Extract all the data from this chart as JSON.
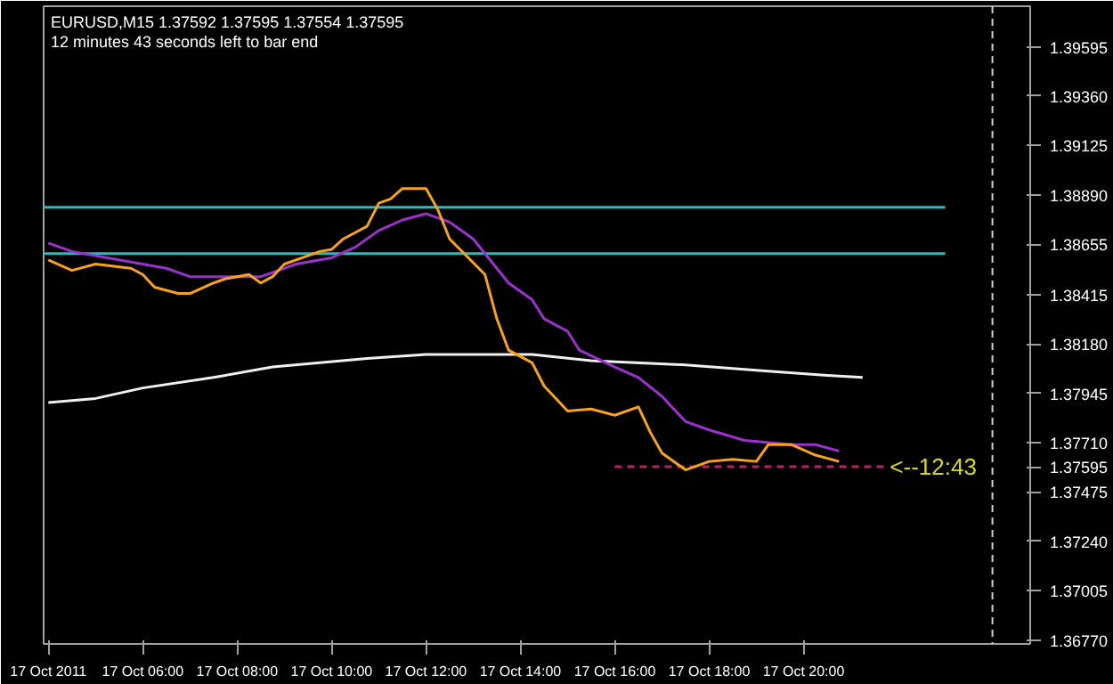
{
  "chart_data": {
    "type": "line",
    "title": "EURUSD,M15  1.37592 1.37595 1.37554 1.37595",
    "subtitle": "12 minutes 43 seconds left to bar end",
    "annotations": [
      {
        "text": "<--12:43",
        "x": "2011-10-17T21:45",
        "y": 1.37595
      }
    ],
    "xlim": [
      "2011-10-17T03:54",
      "2011-10-18T00:48"
    ],
    "ylim": [
      1.36751,
      1.39788
    ],
    "xticks": [
      {
        "value": "2011-10-17T04:00",
        "label": "17 Oct 2011"
      },
      {
        "value": "2011-10-17T06:00",
        "label": "17 Oct 06:00"
      },
      {
        "value": "2011-10-17T08:00",
        "label": "17 Oct 08:00"
      },
      {
        "value": "2011-10-17T10:00",
        "label": "17 Oct 10:00"
      },
      {
        "value": "2011-10-17T12:00",
        "label": "17 Oct 12:00"
      },
      {
        "value": "2011-10-17T14:00",
        "label": "17 Oct 14:00"
      },
      {
        "value": "2011-10-17T16:00",
        "label": "17 Oct 16:00"
      },
      {
        "value": "2011-10-17T18:00",
        "label": "17 Oct 18:00"
      },
      {
        "value": "2011-10-17T20:00",
        "label": "17 Oct 20:00"
      }
    ],
    "yticks": [
      {
        "value": 1.39595,
        "label": "1.39595"
      },
      {
        "value": 1.3936,
        "label": "1.39360"
      },
      {
        "value": 1.39125,
        "label": "1.39125"
      },
      {
        "value": 1.3889,
        "label": "1.38890"
      },
      {
        "value": 1.38655,
        "label": "1.38655"
      },
      {
        "value": 1.38415,
        "label": "1.38415"
      },
      {
        "value": 1.3818,
        "label": "1.38180"
      },
      {
        "value": 1.37945,
        "label": "1.37945"
      },
      {
        "value": 1.3771,
        "label": "1.37710"
      },
      {
        "value": 1.37595,
        "label": "1.37595"
      },
      {
        "value": 1.37475,
        "label": "1.37475"
      },
      {
        "value": 1.3724,
        "label": "1.37240"
      },
      {
        "value": 1.37005,
        "label": "1.37005"
      },
      {
        "value": 1.3677,
        "label": "1.36770"
      }
    ],
    "grid": false,
    "ref_lines": [
      {
        "axis": "x",
        "value": "2011-10-18T00:00",
        "color": "#d0d0d0",
        "line_style": "dashed"
      }
    ],
    "series": [
      {
        "color": "#20c0c0",
        "line_style": "solid",
        "x": [
          "2011-10-17T03:54",
          "2011-10-17T23:00"
        ],
        "values": [
          1.3883,
          1.3883
        ]
      },
      {
        "color": "#20c0c0",
        "line_style": "solid",
        "x": [
          "2011-10-17T03:54",
          "2011-10-17T23:00"
        ],
        "values": [
          1.3861,
          1.3861
        ]
      },
      {
        "color": "#c0206a",
        "line_style": "dashed",
        "x": [
          "2011-10-17T16:00",
          "2011-10-17T21:45"
        ],
        "values": [
          1.37595,
          1.37595
        ]
      },
      {
        "color": "#f0f0f0",
        "line_style": "solid",
        "x": [
          "2011-10-17T04:00",
          "2011-10-17T05:00",
          "2011-10-17T06:00",
          "2011-10-17T07:30",
          "2011-10-17T08:45",
          "2011-10-17T10:45",
          "2011-10-17T12:00",
          "2011-10-17T13:15",
          "2011-10-17T14:15",
          "2011-10-17T15:30",
          "2011-10-17T17:30",
          "2011-10-17T19:15",
          "2011-10-17T20:30",
          "2011-10-17T21:15"
        ],
        "values": [
          1.379,
          1.3792,
          1.3797,
          1.3802,
          1.3807,
          1.3811,
          1.3813,
          1.3813,
          1.3813,
          1.381,
          1.3808,
          1.3805,
          1.3803,
          1.3802
        ]
      },
      {
        "color": "#9932cc",
        "line_style": "solid",
        "x": [
          "2011-10-17T04:00",
          "2011-10-17T04:30",
          "2011-10-17T05:15",
          "2011-10-17T06:30",
          "2011-10-17T07:00",
          "2011-10-17T07:45",
          "2011-10-17T08:30",
          "2011-10-17T09:15",
          "2011-10-17T10:00",
          "2011-10-17T10:30",
          "2011-10-17T11:00",
          "2011-10-17T11:30",
          "2011-10-17T12:00",
          "2011-10-17T12:30",
          "2011-10-17T13:00",
          "2011-10-17T13:15",
          "2011-10-17T13:45",
          "2011-10-17T14:15",
          "2011-10-17T14:30",
          "2011-10-17T15:00",
          "2011-10-17T15:15",
          "2011-10-17T16:00",
          "2011-10-17T16:30",
          "2011-10-17T17:00",
          "2011-10-17T17:30",
          "2011-10-17T18:00",
          "2011-10-17T18:45",
          "2011-10-17T19:45",
          "2011-10-17T20:15",
          "2011-10-17T20:45"
        ],
        "values": [
          1.3866,
          1.3862,
          1.3859,
          1.3854,
          1.385,
          1.385,
          1.385,
          1.3856,
          1.3859,
          1.3864,
          1.3872,
          1.3877,
          1.388,
          1.3876,
          1.3868,
          1.3861,
          1.3847,
          1.3839,
          1.383,
          1.3824,
          1.3815,
          1.3807,
          1.3802,
          1.3793,
          1.3781,
          1.3777,
          1.3772,
          1.377,
          1.377,
          1.3767
        ]
      },
      {
        "color": "#f7a21b",
        "line_style": "solid",
        "x": [
          "2011-10-17T04:00",
          "2011-10-17T04:30",
          "2011-10-17T05:00",
          "2011-10-17T05:45",
          "2011-10-17T06:00",
          "2011-10-17T06:15",
          "2011-10-17T06:45",
          "2011-10-17T07:00",
          "2011-10-17T07:30",
          "2011-10-17T07:45",
          "2011-10-17T08:15",
          "2011-10-17T08:30",
          "2011-10-17T08:45",
          "2011-10-17T09:00",
          "2011-10-17T09:30",
          "2011-10-17T09:45",
          "2011-10-17T10:00",
          "2011-10-17T10:15",
          "2011-10-17T10:45",
          "2011-10-17T11:00",
          "2011-10-17T11:15",
          "2011-10-17T11:30",
          "2011-10-17T12:00",
          "2011-10-17T12:15",
          "2011-10-17T12:30",
          "2011-10-17T13:15",
          "2011-10-17T13:30",
          "2011-10-17T13:45",
          "2011-10-17T14:15",
          "2011-10-17T14:30",
          "2011-10-17T15:00",
          "2011-10-17T15:30",
          "2011-10-17T16:00",
          "2011-10-17T16:30",
          "2011-10-17T16:45",
          "2011-10-17T17:00",
          "2011-10-17T17:30",
          "2011-10-17T18:00",
          "2011-10-17T18:30",
          "2011-10-17T19:00",
          "2011-10-17T19:15",
          "2011-10-17T19:45",
          "2011-10-17T20:15",
          "2011-10-17T20:45"
        ],
        "values": [
          1.3858,
          1.3853,
          1.3856,
          1.3854,
          1.3851,
          1.3845,
          1.3842,
          1.3842,
          1.3847,
          1.3849,
          1.3851,
          1.3847,
          1.385,
          1.3856,
          1.386,
          1.3862,
          1.3863,
          1.3868,
          1.3874,
          1.3885,
          1.3887,
          1.3892,
          1.3892,
          1.3882,
          1.3868,
          1.3851,
          1.383,
          1.3815,
          1.3809,
          1.3798,
          1.3786,
          1.3787,
          1.3784,
          1.3788,
          1.3776,
          1.3766,
          1.3758,
          1.3762,
          1.3763,
          1.3762,
          1.377,
          1.377,
          1.3765,
          1.3762
        ]
      }
    ]
  }
}
